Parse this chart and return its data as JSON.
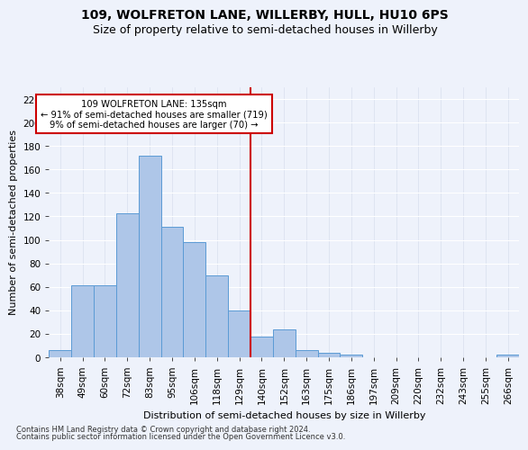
{
  "title": "109, WOLFRETON LANE, WILLERBY, HULL, HU10 6PS",
  "subtitle": "Size of property relative to semi-detached houses in Willerby",
  "xlabel": "Distribution of semi-detached houses by size in Willerby",
  "ylabel": "Number of semi-detached properties",
  "footnote1": "Contains HM Land Registry data © Crown copyright and database right 2024.",
  "footnote2": "Contains public sector information licensed under the Open Government Licence v3.0.",
  "categories": [
    "38sqm",
    "49sqm",
    "60sqm",
    "72sqm",
    "83sqm",
    "95sqm",
    "106sqm",
    "118sqm",
    "129sqm",
    "140sqm",
    "152sqm",
    "163sqm",
    "175sqm",
    "186sqm",
    "197sqm",
    "209sqm",
    "220sqm",
    "232sqm",
    "243sqm",
    "255sqm",
    "266sqm"
  ],
  "values": [
    6,
    61,
    61,
    123,
    172,
    111,
    98,
    70,
    40,
    18,
    24,
    6,
    4,
    2,
    0,
    0,
    0,
    0,
    0,
    0,
    2
  ],
  "bar_color": "#aec6e8",
  "bar_edge_color": "#5b9bd5",
  "marker_bin": 8,
  "marker_label": "109 WOLFRETON LANE: 135sqm",
  "marker_smaller": "← 91% of semi-detached houses are smaller (719)",
  "marker_larger": "9% of semi-detached houses are larger (70) →",
  "marker_color": "#cc0000",
  "ylim": [
    0,
    230
  ],
  "yticks": [
    0,
    20,
    40,
    60,
    80,
    100,
    120,
    140,
    160,
    180,
    200,
    220
  ],
  "bg_color": "#eef2fb",
  "grid_color": "#ffffff",
  "title_fontsize": 10,
  "subtitle_fontsize": 9,
  "axis_label_fontsize": 8,
  "tick_fontsize": 7.5
}
